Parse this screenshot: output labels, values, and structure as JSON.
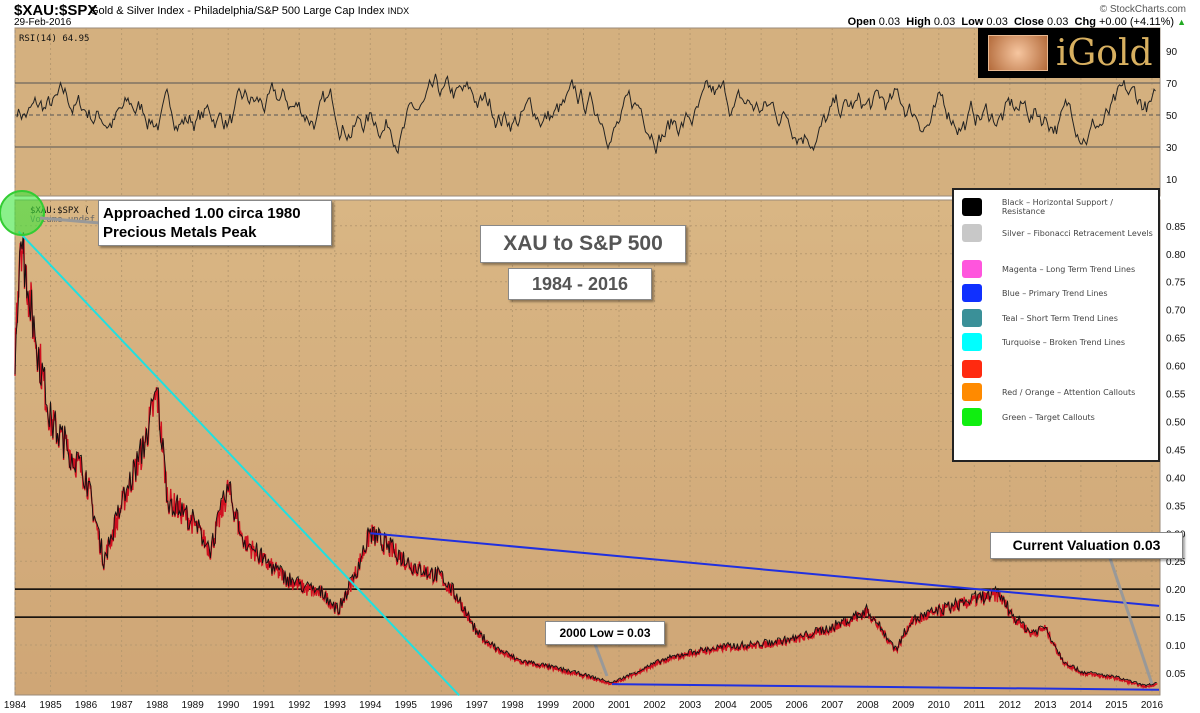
{
  "header": {
    "symbol": "$XAU:$SPX",
    "description": "Gold & Silver Index - Philadelphia/S&P 500 Large Cap Index",
    "exchange": "INDX",
    "date": "29-Feb-2016",
    "copyright": "© StockCharts.com",
    "open_label": "Open",
    "open": "0.03",
    "high_label": "High",
    "high": "0.03",
    "low_label": "Low",
    "low": "0.03",
    "close_label": "Close",
    "close": "0.03",
    "chg_label": "Chg",
    "chg": "+0.00 (+4.11%)"
  },
  "logo_text": "iGold",
  "rsi_label": "RSI(14) 64.95",
  "price_label": "$XAU:$SPX (",
  "volume_label": "Volume undef",
  "callouts": {
    "peak": [
      "Approached 1.00 circa 1980",
      "Precious Metals Peak"
    ],
    "title": "XAU to S&P 500",
    "range": "1984 - 2016",
    "low2000": "2000 Low = 0.03",
    "current": "Current Valuation 0.03"
  },
  "legend": [
    {
      "color": "#000000",
      "label": "Black – Horizontal Support / Resistance"
    },
    {
      "color": "#c8c8c8",
      "label": "Silver – Fibonacci Retracement Levels"
    },
    {
      "color": "#ff55dd",
      "label": "Magenta – Long Term Trend Lines"
    },
    {
      "color": "#1030ff",
      "label": "Blue – Primary Trend Lines"
    },
    {
      "color": "#3a9098",
      "label": "Teal – Short Term Trend Lines"
    },
    {
      "color": "#00ffff",
      "label": "Turquoise – Broken Trend Lines"
    },
    {
      "color": "#ff2a10",
      "label": ""
    },
    {
      "color": "#ff8a00",
      "label": "Red / Orange – Attention Callouts"
    },
    {
      "color": "#10ee10",
      "label": "Green – Target Callouts"
    }
  ],
  "chart_data": {
    "type": "line",
    "title": "XAU to S&P 500",
    "x_ticks": [
      1984,
      1985,
      1986,
      1987,
      1988,
      1989,
      1990,
      1991,
      1992,
      1993,
      1994,
      1995,
      1996,
      1997,
      1998,
      1999,
      2000,
      2001,
      2002,
      2003,
      2004,
      2005,
      2006,
      2007,
      2008,
      2009,
      2010,
      2011,
      2012,
      2013,
      2014,
      2015,
      2016
    ],
    "xlim": [
      1984,
      2016.3
    ],
    "price": {
      "ylim": [
        0.0,
        0.9
      ],
      "y_ticks": [
        "0.05",
        "0.10",
        "0.15",
        "0.20",
        "0.25",
        "0.30",
        "0.35",
        "0.40",
        "0.45",
        "0.50",
        "0.55",
        "0.60",
        "0.65",
        "0.70",
        "0.75",
        "0.80",
        "0.85"
      ],
      "anchors": [
        [
          1984.0,
          0.62
        ],
        [
          1984.15,
          0.84
        ],
        [
          1984.5,
          0.68
        ],
        [
          1985.0,
          0.5
        ],
        [
          1985.5,
          0.45
        ],
        [
          1986.0,
          0.4
        ],
        [
          1986.5,
          0.25
        ],
        [
          1987.0,
          0.35
        ],
        [
          1987.6,
          0.45
        ],
        [
          1988.0,
          0.55
        ],
        [
          1988.3,
          0.36
        ],
        [
          1989.0,
          0.32
        ],
        [
          1989.5,
          0.27
        ],
        [
          1990.0,
          0.38
        ],
        [
          1990.4,
          0.29
        ],
        [
          1991.0,
          0.25
        ],
        [
          1991.6,
          0.22
        ],
        [
          1992.2,
          0.2
        ],
        [
          1992.7,
          0.19
        ],
        [
          1993.1,
          0.16
        ],
        [
          1993.6,
          0.23
        ],
        [
          1994.0,
          0.3
        ],
        [
          1994.6,
          0.27
        ],
        [
          1995.2,
          0.24
        ],
        [
          1996.0,
          0.22
        ],
        [
          1996.5,
          0.18
        ],
        [
          1997.0,
          0.12
        ],
        [
          1997.6,
          0.09
        ],
        [
          1998.2,
          0.07
        ],
        [
          1999.0,
          0.06
        ],
        [
          2000.0,
          0.045
        ],
        [
          2000.8,
          0.03
        ],
        [
          2001.5,
          0.05
        ],
        [
          2002.2,
          0.07
        ],
        [
          2003.0,
          0.085
        ],
        [
          2004.0,
          0.095
        ],
        [
          2005.0,
          0.1
        ],
        [
          2006.0,
          0.11
        ],
        [
          2007.0,
          0.13
        ],
        [
          2008.0,
          0.16
        ],
        [
          2008.8,
          0.09
        ],
        [
          2009.2,
          0.14
        ],
        [
          2010.0,
          0.16
        ],
        [
          2011.0,
          0.18
        ],
        [
          2011.7,
          0.19
        ],
        [
          2012.1,
          0.15
        ],
        [
          2012.6,
          0.12
        ],
        [
          2013.0,
          0.13
        ],
        [
          2013.5,
          0.07
        ],
        [
          2014.0,
          0.05
        ],
        [
          2015.0,
          0.04
        ],
        [
          2015.8,
          0.025
        ],
        [
          2016.15,
          0.03
        ]
      ],
      "horizontal_levels": [
        0.2,
        0.15
      ],
      "trend_lines": [
        {
          "color": "#20e0e0",
          "from": [
            1984.1,
            0.84
          ],
          "to": [
            1996.5,
            0.01
          ]
        },
        {
          "color": "#2030e0",
          "from": [
            1994.0,
            0.3
          ],
          "to": [
            2016.2,
            0.17
          ]
        },
        {
          "color": "#2030e0",
          "from": [
            2000.8,
            0.03
          ],
          "to": [
            2016.2,
            0.02
          ]
        }
      ]
    },
    "rsi": {
      "ylim": [
        5,
        95
      ],
      "y_ticks": [
        "10",
        "30",
        "50",
        "70",
        "90"
      ],
      "levels": [
        70,
        50,
        30
      ],
      "last": 64.95
    }
  }
}
